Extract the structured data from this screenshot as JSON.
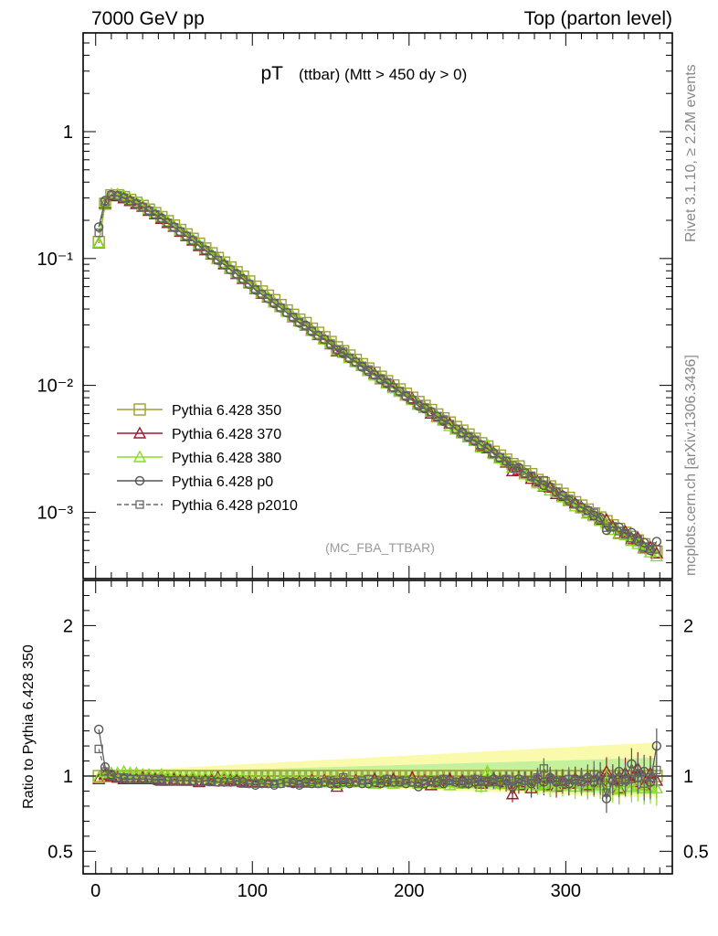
{
  "header": {
    "left": "7000 GeV pp",
    "right": "Top (parton level)"
  },
  "side_labels": {
    "rivet": "Rivet 3.1.10, ≥ 2.2M events",
    "mcplots": "mcplots.cern.ch [arXiv:1306.3436]"
  },
  "plot_title": {
    "main": "pT",
    "sub": "(ttbar) (Mtt > 450 dy > 0)"
  },
  "analysis_label": "(MC_FBA_TTBAR)",
  "colors": {
    "s350": "#a0a030",
    "s370": "#9b1c30",
    "s380": "#88dd22",
    "p0": "#555555",
    "p2010": "#666666",
    "band_yellow": "#f5f56a",
    "band_green": "#8de88d"
  },
  "chart_data": {
    "type": "line",
    "x": [
      2,
      6,
      10,
      14,
      18,
      22,
      26,
      30,
      34,
      38,
      42,
      46,
      50,
      54,
      58,
      62,
      66,
      70,
      74,
      78,
      82,
      86,
      90,
      94,
      98,
      102,
      106,
      110,
      114,
      118,
      122,
      126,
      130,
      134,
      138,
      142,
      146,
      150,
      154,
      158,
      162,
      166,
      170,
      174,
      178,
      182,
      186,
      190,
      194,
      198,
      202,
      206,
      210,
      214,
      218,
      222,
      226,
      230,
      234,
      238,
      242,
      246,
      250,
      254,
      258,
      262,
      266,
      270,
      274,
      278,
      282,
      286,
      290,
      294,
      298,
      302,
      306,
      310,
      314,
      318,
      322,
      326,
      330,
      334,
      338,
      342,
      346,
      350,
      354,
      358
    ],
    "main_yscale": "log",
    "main_ylim": [
      0.0003,
      6.0
    ],
    "main_yticks": [
      {
        "v": 0.001,
        "label": "10⁻³"
      },
      {
        "v": 0.01,
        "label": "10⁻²"
      },
      {
        "v": 0.1,
        "label": "10⁻¹"
      },
      {
        "v": 1,
        "label": "1"
      }
    ],
    "ratio_ylim": [
      0.35,
      2.3
    ],
    "ratio_yticks": [
      {
        "v": 0.5,
        "label": "0.5"
      },
      {
        "v": 1,
        "label": "1"
      },
      {
        "v": 2,
        "label": "2"
      }
    ],
    "xlim": [
      -8,
      368
    ],
    "xticks": [
      {
        "v": 0,
        "label": "0"
      },
      {
        "v": 100,
        "label": "100"
      },
      {
        "v": 200,
        "label": "200"
      },
      {
        "v": 300,
        "label": "300"
      }
    ],
    "ratio_ylabel": "Ratio to Pythia 6.428 350",
    "reference": [
      0.135,
      0.27,
      0.315,
      0.315,
      0.305,
      0.29,
      0.275,
      0.26,
      0.243,
      0.228,
      0.212,
      0.197,
      0.182,
      0.168,
      0.155,
      0.143,
      0.131,
      0.12,
      0.11,
      0.101,
      0.093,
      0.085,
      0.078,
      0.072,
      0.066,
      0.06,
      0.055,
      0.051,
      0.047,
      0.043,
      0.039,
      0.036,
      0.033,
      0.031,
      0.028,
      0.026,
      0.024,
      0.022,
      0.02,
      0.0186,
      0.0172,
      0.0159,
      0.0147,
      0.0136,
      0.0126,
      0.0117,
      0.0108,
      0.01,
      0.0093,
      0.0086,
      0.008,
      0.0074,
      0.0069,
      0.0064,
      0.0059,
      0.0055,
      0.0051,
      0.0047,
      0.0044,
      0.0041,
      0.0038,
      0.0035,
      0.0033,
      0.003,
      0.0028,
      0.0026,
      0.0024,
      0.0023,
      0.0021,
      0.002,
      0.0018,
      0.0017,
      0.0016,
      0.0015,
      0.0014,
      0.0013,
      0.0012,
      0.00113,
      0.00105,
      0.00098,
      0.00091,
      0.00085,
      0.00079,
      0.00074,
      0.00069,
      0.00064,
      0.0006,
      0.00056,
      0.00052,
      0.00049
    ],
    "series": [
      {
        "name": "Pythia 6.428 350",
        "key": "s350",
        "marker": "square",
        "line": "solid",
        "ratio": [
          1.0,
          1.0,
          1.0,
          1.0,
          1.0,
          1.0,
          1.0,
          1.0,
          1.0,
          1.0,
          1.0,
          1.0,
          1.0,
          1.0,
          1.0,
          1.0,
          1.0,
          1.0,
          1.0,
          1.0,
          1.0,
          1.0,
          1.0,
          1.0,
          1.0,
          1.0,
          1.0,
          1.0,
          1.0,
          1.0,
          1.0,
          1.0,
          1.0,
          1.0,
          1.0,
          1.0,
          1.0,
          1.0,
          1.0,
          1.0,
          1.0,
          1.0,
          1.0,
          1.0,
          1.0,
          1.0,
          1.0,
          1.0,
          1.0,
          1.0,
          1.0,
          1.0,
          1.0,
          1.0,
          1.0,
          1.0,
          1.0,
          1.0,
          1.0,
          1.0,
          1.0,
          1.0,
          1.0,
          1.0,
          1.0,
          1.0,
          1.0,
          1.0,
          1.0,
          1.0,
          1.0,
          1.0,
          1.0,
          1.0,
          1.0,
          1.0,
          1.0,
          1.0,
          1.0,
          1.0,
          1.0,
          1.0,
          1.0,
          1.0,
          1.0,
          1.0,
          1.0,
          1.0,
          1.0,
          1.0
        ]
      },
      {
        "name": "Pythia 6.428 370",
        "key": "s370",
        "marker": "triangle",
        "line": "solid",
        "ratio": [
          0.98,
          1.01,
          1.0,
          0.99,
          0.98,
          0.98,
          0.98,
          0.99,
          0.98,
          0.98,
          0.97,
          0.97,
          0.98,
          0.97,
          0.97,
          0.97,
          0.96,
          0.97,
          0.98,
          0.99,
          0.97,
          0.98,
          0.97,
          0.96,
          0.97,
          0.96,
          0.96,
          0.97,
          0.96,
          0.97,
          0.98,
          0.96,
          0.97,
          0.96,
          0.97,
          0.96,
          0.97,
          0.96,
          0.93,
          0.98,
          0.96,
          0.97,
          0.97,
          0.96,
          0.98,
          0.96,
          0.97,
          0.98,
          0.96,
          0.97,
          0.99,
          0.96,
          0.97,
          0.94,
          0.96,
          0.97,
          0.98,
          0.96,
          0.97,
          0.96,
          0.97,
          0.95,
          0.97,
          0.98,
          0.96,
          0.95,
          0.88,
          0.94,
          0.96,
          0.92,
          0.97,
          0.94,
          0.98,
          0.93,
          0.96,
          0.95,
          0.98,
          0.97,
          0.94,
          0.97,
          0.96,
          1.03,
          0.98,
          0.92,
          1.02,
          0.96,
          1.05,
          0.94,
          1.02,
          0.97
        ]
      },
      {
        "name": "Pythia 6.428 380",
        "key": "s380",
        "marker": "triangle",
        "line": "solid",
        "ratio": [
          0.99,
          1.03,
          1.02,
          1.02,
          1.03,
          1.02,
          1.02,
          1.01,
          1.01,
          1.0,
          1.01,
          1.0,
          1.0,
          0.99,
          0.99,
          1.0,
          0.99,
          0.99,
          0.99,
          0.98,
          1.0,
          0.99,
          0.99,
          0.98,
          0.98,
          0.97,
          0.97,
          0.98,
          0.96,
          0.97,
          0.98,
          0.97,
          0.98,
          0.97,
          0.96,
          0.97,
          0.96,
          0.97,
          0.95,
          0.97,
          0.96,
          0.96,
          0.97,
          0.96,
          0.95,
          0.97,
          0.96,
          0.95,
          0.96,
          0.97,
          0.96,
          0.95,
          0.96,
          0.97,
          0.95,
          0.96,
          0.94,
          0.96,
          0.95,
          0.97,
          0.96,
          0.93,
          1.03,
          0.96,
          0.95,
          0.97,
          0.94,
          0.97,
          0.95,
          0.96,
          0.94,
          0.95,
          0.93,
          0.96,
          0.94,
          0.96,
          0.93,
          0.95,
          0.93,
          0.95,
          0.94,
          0.96,
          0.92,
          0.91,
          0.96,
          0.93,
          0.94,
          0.92,
          0.93,
          0.92
        ]
      },
      {
        "name": "Pythia 6.428 p0",
        "key": "p0",
        "marker": "circle",
        "line": "solid",
        "ratio": [
          1.31,
          1.06,
          1.01,
          0.99,
          0.98,
          0.98,
          0.98,
          0.98,
          0.98,
          0.97,
          0.98,
          0.97,
          0.97,
          0.97,
          0.97,
          0.97,
          0.96,
          0.97,
          0.97,
          0.96,
          0.96,
          0.96,
          0.97,
          0.96,
          0.95,
          0.94,
          0.95,
          0.95,
          0.94,
          0.95,
          0.96,
          0.95,
          0.94,
          0.96,
          0.95,
          0.95,
          0.96,
          0.95,
          0.95,
          0.96,
          0.95,
          0.96,
          0.95,
          0.95,
          0.96,
          0.95,
          0.96,
          0.96,
          0.96,
          0.95,
          0.96,
          0.93,
          0.95,
          0.97,
          0.96,
          0.95,
          0.97,
          0.96,
          0.97,
          0.95,
          0.96,
          0.97,
          0.96,
          0.98,
          0.96,
          0.97,
          0.93,
          0.98,
          0.97,
          0.95,
          0.98,
          0.96,
          0.99,
          0.96,
          0.97,
          0.95,
          0.98,
          0.97,
          0.99,
          0.96,
          1.0,
          0.85,
          0.97,
          1.03,
          0.98,
          1.08,
          0.99,
          1.03,
          0.96,
          1.2
        ]
      },
      {
        "name": "Pythia 6.428 p2010",
        "key": "p2010",
        "marker": "square-small",
        "line": "dashed",
        "ratio": [
          1.18,
          1.03,
          1.0,
          0.99,
          0.99,
          0.98,
          0.98,
          0.98,
          0.98,
          0.98,
          0.97,
          0.97,
          0.97,
          0.97,
          0.97,
          0.97,
          0.96,
          0.97,
          0.96,
          0.96,
          0.96,
          0.96,
          0.96,
          0.95,
          0.95,
          0.95,
          0.95,
          0.95,
          0.95,
          0.95,
          0.96,
          0.96,
          0.95,
          0.95,
          0.96,
          0.95,
          0.96,
          0.97,
          0.96,
          0.99,
          0.96,
          0.96,
          0.97,
          0.98,
          0.96,
          0.97,
          0.98,
          0.96,
          0.97,
          0.97,
          0.96,
          0.95,
          0.97,
          0.96,
          0.97,
          0.98,
          0.97,
          0.96,
          0.95,
          0.97,
          0.98,
          0.96,
          0.97,
          0.96,
          0.97,
          0.98,
          0.97,
          0.96,
          0.97,
          0.97,
          0.99,
          1.05,
          0.98,
          0.97,
          0.96,
          0.98,
          0.97,
          0.96,
          0.98,
          1.01,
          0.97,
          0.89,
          0.98,
          0.96,
          0.97,
          0.98,
          1.02,
          0.95,
          0.99,
          1.04
        ]
      }
    ]
  }
}
